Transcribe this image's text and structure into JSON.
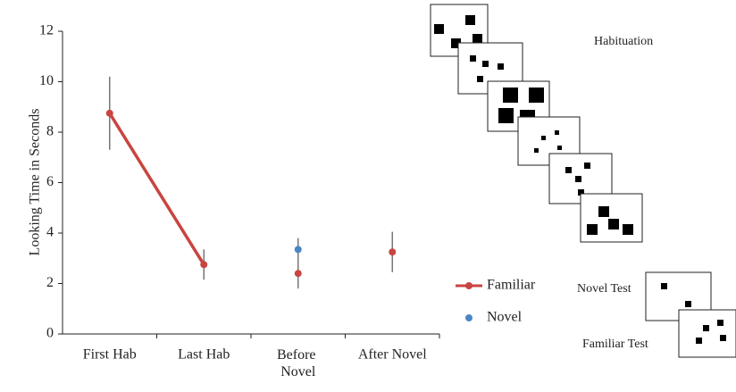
{
  "chart_data": {
    "type": "line",
    "y_label": "Looking Time in Seconds",
    "categories": [
      "First Hab",
      "Last Hab",
      "Before Novel",
      "After Novel"
    ],
    "series": [
      {
        "name": "Familiar",
        "color": "#c9453f",
        "values": [
          8.75,
          2.75,
          2.4,
          3.25
        ],
        "errors": [
          1.45,
          0.6,
          0.6,
          0.8
        ]
      },
      {
        "name": "Novel",
        "color": "#4a86c5",
        "values": [
          null,
          null,
          3.35,
          null
        ],
        "errors": [
          null,
          null,
          0.45,
          null
        ]
      }
    ],
    "ylim": [
      0,
      12
    ],
    "yticks": [
      0,
      2,
      4,
      6,
      8,
      10,
      12
    ]
  },
  "diagram": {
    "habituation_label": "Habituation",
    "novel_test_label": "Novel Test",
    "familiar_test_label": "Familiar Test"
  }
}
